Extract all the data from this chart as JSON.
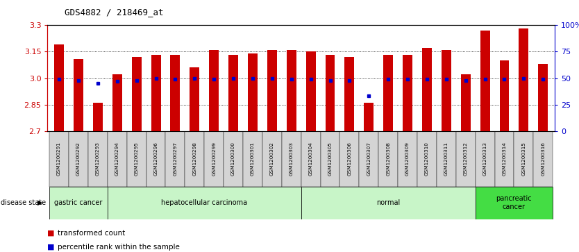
{
  "title": "GDS4882 / 218469_at",
  "samples": [
    "GSM1200291",
    "GSM1200292",
    "GSM1200293",
    "GSM1200294",
    "GSM1200295",
    "GSM1200296",
    "GSM1200297",
    "GSM1200298",
    "GSM1200299",
    "GSM1200300",
    "GSM1200301",
    "GSM1200302",
    "GSM1200303",
    "GSM1200304",
    "GSM1200305",
    "GSM1200306",
    "GSM1200307",
    "GSM1200308",
    "GSM1200309",
    "GSM1200310",
    "GSM1200311",
    "GSM1200312",
    "GSM1200313",
    "GSM1200314",
    "GSM1200315",
    "GSM1200316"
  ],
  "transformed_counts": [
    3.19,
    3.11,
    2.86,
    3.02,
    3.12,
    3.13,
    3.13,
    3.06,
    3.16,
    3.13,
    3.14,
    3.16,
    3.16,
    3.15,
    3.13,
    3.12,
    2.86,
    3.13,
    3.13,
    3.17,
    3.16,
    3.02,
    3.27,
    3.1,
    3.28,
    3.08
  ],
  "percentile_ranks": [
    49,
    48,
    45,
    47,
    48,
    50,
    49,
    50,
    49,
    50,
    50,
    50,
    49,
    49,
    48,
    48,
    33,
    49,
    49,
    49,
    49,
    48,
    49,
    49,
    50,
    49
  ],
  "y_min": 2.7,
  "y_max": 3.3,
  "y_ticks_left": [
    2.7,
    2.85,
    3.0,
    3.15,
    3.3
  ],
  "y_ticks_right": [
    0,
    25,
    50,
    75,
    100
  ],
  "bar_color": "#cc0000",
  "dot_color": "#0000cc",
  "disease_groups": [
    {
      "label": "gastric cancer",
      "start": 0,
      "end": 2,
      "color": "#c8f5c8"
    },
    {
      "label": "hepatocellular carcinoma",
      "start": 3,
      "end": 12,
      "color": "#c8f5c8"
    },
    {
      "label": "normal",
      "start": 13,
      "end": 21,
      "color": "#c8f5c8"
    },
    {
      "label": "pancreatic\ncancer",
      "start": 22,
      "end": 25,
      "color": "#44dd44"
    }
  ],
  "baseline": 2.7,
  "bar_width": 0.5
}
